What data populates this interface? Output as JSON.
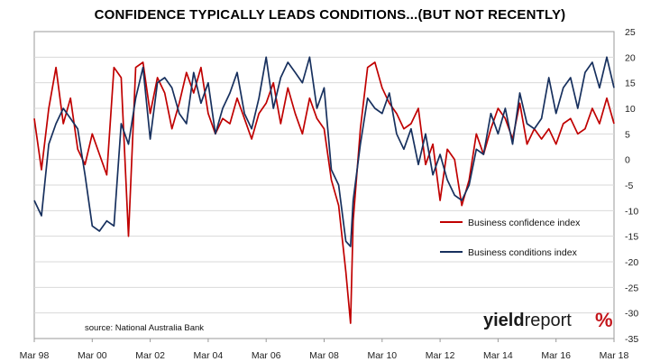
{
  "chart_data": {
    "type": "line",
    "title": "CONFIDENCE TYPICALLY LEADS CONDITIONS...(BUT NOT RECENTLY)",
    "source": "source: National Australia Bank",
    "logo": {
      "part1": "yield",
      "part2": "report",
      "symbol": "%"
    },
    "ylim": [
      -35,
      25
    ],
    "yticks": [
      25,
      20,
      15,
      10,
      5,
      0,
      -5,
      -10,
      -15,
      -20,
      -25,
      -30,
      -35
    ],
    "xlim": [
      1998.17,
      2018.17
    ],
    "x_tick_labels": [
      "Mar 98",
      "Mar 00",
      "Mar 02",
      "Mar 04",
      "Mar 06",
      "Mar 08",
      "Mar 10",
      "Mar 12",
      "Mar 14",
      "Mar 16",
      "Mar 18"
    ],
    "x_ticks": [
      1998.17,
      2000.17,
      2002.17,
      2004.17,
      2006.17,
      2008.17,
      2010.17,
      2012.17,
      2014.17,
      2016.17,
      2018.17
    ],
    "grid": "horizontal",
    "legend": "right",
    "series": [
      {
        "name": "Business confidence index",
        "color": "#c00000",
        "x": [
          1998.17,
          1998.42,
          1998.67,
          1998.92,
          1999.17,
          1999.42,
          1999.67,
          1999.92,
          2000.17,
          2000.42,
          2000.67,
          2000.92,
          2001.17,
          2001.42,
          2001.67,
          2001.92,
          2002.17,
          2002.42,
          2002.67,
          2002.92,
          2003.17,
          2003.42,
          2003.67,
          2003.92,
          2004.17,
          2004.42,
          2004.67,
          2004.92,
          2005.17,
          2005.42,
          2005.67,
          2005.92,
          2006.17,
          2006.42,
          2006.67,
          2006.92,
          2007.17,
          2007.42,
          2007.67,
          2007.92,
          2008.17,
          2008.42,
          2008.67,
          2008.92,
          2009.08,
          2009.17,
          2009.42,
          2009.67,
          2009.92,
          2010.17,
          2010.42,
          2010.67,
          2010.92,
          2011.17,
          2011.42,
          2011.67,
          2011.92,
          2012.17,
          2012.42,
          2012.67,
          2012.92,
          2013.17,
          2013.42,
          2013.67,
          2013.92,
          2014.17,
          2014.42,
          2014.67,
          2014.92,
          2015.17,
          2015.42,
          2015.67,
          2015.92,
          2016.17,
          2016.42,
          2016.67,
          2016.92,
          2017.17,
          2017.42,
          2017.67,
          2017.92,
          2018.17
        ],
        "values": [
          8,
          -2,
          10,
          18,
          7,
          12,
          2,
          -1,
          5,
          1,
          -3,
          18,
          16,
          -15,
          18,
          19,
          9,
          16,
          13,
          6,
          11,
          17,
          13,
          18,
          9,
          5,
          8,
          7,
          12,
          8,
          4,
          9,
          11,
          15,
          7,
          14,
          9,
          5,
          12,
          8,
          6,
          -4,
          -9,
          -22,
          -32,
          -12,
          6,
          18,
          19,
          14,
          11,
          9,
          6,
          7,
          10,
          -1,
          3,
          -8,
          2,
          0,
          -9,
          -4,
          5,
          1,
          6,
          10,
          8,
          4,
          11,
          3,
          6,
          4,
          6,
          3,
          7,
          8,
          5,
          6,
          10,
          7,
          12,
          7
        ]
      },
      {
        "name": "Business conditions index",
        "color": "#17305e",
        "x": [
          1998.17,
          1998.42,
          1998.67,
          1998.92,
          1999.17,
          1999.42,
          1999.67,
          1999.92,
          2000.17,
          2000.42,
          2000.67,
          2000.92,
          2001.17,
          2001.42,
          2001.67,
          2001.92,
          2002.17,
          2002.42,
          2002.67,
          2002.92,
          2003.17,
          2003.42,
          2003.67,
          2003.92,
          2004.17,
          2004.42,
          2004.67,
          2004.92,
          2005.17,
          2005.42,
          2005.67,
          2005.92,
          2006.17,
          2006.42,
          2006.67,
          2006.92,
          2007.17,
          2007.42,
          2007.67,
          2007.92,
          2008.17,
          2008.42,
          2008.67,
          2008.92,
          2009.08,
          2009.17,
          2009.42,
          2009.67,
          2009.92,
          2010.17,
          2010.42,
          2010.67,
          2010.92,
          2011.17,
          2011.42,
          2011.67,
          2011.92,
          2012.17,
          2012.42,
          2012.67,
          2012.92,
          2013.17,
          2013.42,
          2013.67,
          2013.92,
          2014.17,
          2014.42,
          2014.67,
          2014.92,
          2015.17,
          2015.42,
          2015.67,
          2015.92,
          2016.17,
          2016.42,
          2016.67,
          2016.92,
          2017.17,
          2017.42,
          2017.67,
          2017.92,
          2018.17
        ],
        "values": [
          -8,
          -11,
          3,
          7,
          10,
          8,
          6,
          -3,
          -13,
          -14,
          -12,
          -13,
          7,
          3,
          12,
          18,
          4,
          15,
          16,
          14,
          9,
          7,
          17,
          11,
          15,
          5,
          10,
          13,
          17,
          9,
          6,
          12,
          20,
          10,
          16,
          19,
          17,
          15,
          20,
          10,
          14,
          -2,
          -5,
          -16,
          -17,
          -8,
          3,
          12,
          10,
          9,
          13,
          5,
          2,
          6,
          -1,
          5,
          -3,
          1,
          -4,
          -7,
          -8,
          -5,
          2,
          1,
          9,
          5,
          10,
          3,
          13,
          7,
          6,
          8,
          16,
          9,
          14,
          16,
          10,
          17,
          19,
          14,
          20,
          14
        ]
      }
    ]
  }
}
